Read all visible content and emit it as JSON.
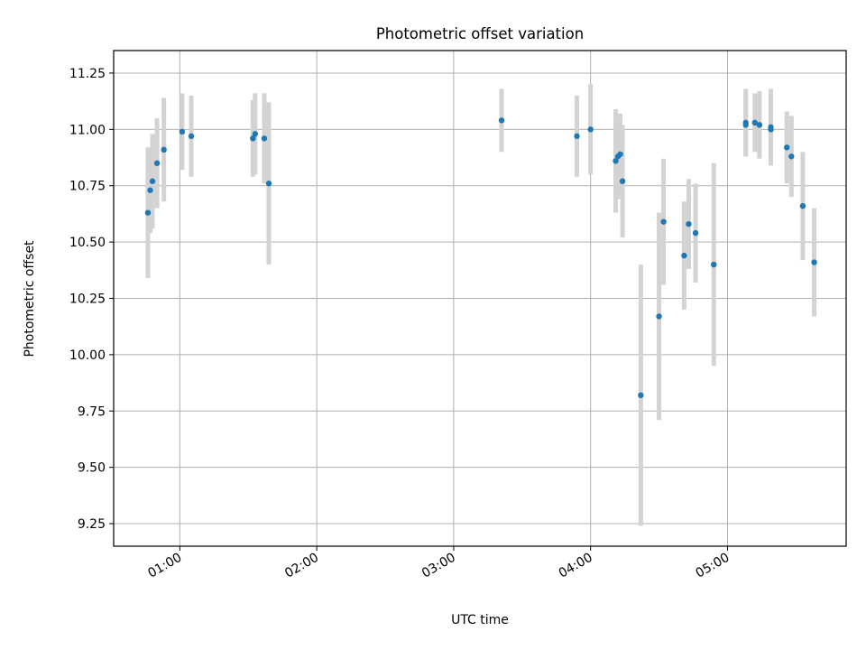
{
  "chart_data": {
    "type": "scatter",
    "title": "Photometric offset variation",
    "xlabel": "UTC time",
    "ylabel": "Photometric offset",
    "xlim": [
      "00:31",
      "05:52"
    ],
    "ylim": [
      9.15,
      11.35
    ],
    "x_ticks": [
      "01:00",
      "02:00",
      "03:00",
      "04:00",
      "05:00"
    ],
    "y_ticks": [
      "9.25",
      "9.50",
      "9.75",
      "10.00",
      "10.25",
      "10.50",
      "10.75",
      "11.00",
      "11.25"
    ],
    "grid": true,
    "marker_color": "#1f77b4",
    "errorbar_color": "#d3d3d3",
    "points": [
      {
        "t": "00:46",
        "y": 10.63,
        "err": 0.29
      },
      {
        "t": "00:47",
        "y": 10.73,
        "err": 0.19
      },
      {
        "t": "00:48",
        "y": 10.77,
        "err": 0.21
      },
      {
        "t": "00:50",
        "y": 10.85,
        "err": 0.2
      },
      {
        "t": "00:53",
        "y": 10.91,
        "err": 0.23
      },
      {
        "t": "01:01",
        "y": 10.99,
        "err": 0.17
      },
      {
        "t": "01:05",
        "y": 10.97,
        "err": 0.18
      },
      {
        "t": "01:32",
        "y": 10.96,
        "err": 0.17
      },
      {
        "t": "01:33",
        "y": 10.98,
        "err": 0.18
      },
      {
        "t": "01:37",
        "y": 10.96,
        "err": 0.2
      },
      {
        "t": "01:39",
        "y": 10.76,
        "err": 0.36
      },
      {
        "t": "03:21",
        "y": 11.04,
        "err": 0.14
      },
      {
        "t": "03:54",
        "y": 10.97,
        "err": 0.18
      },
      {
        "t": "04:00",
        "y": 11.0,
        "err": 0.2
      },
      {
        "t": "04:11",
        "y": 10.86,
        "err": 0.23
      },
      {
        "t": "04:12",
        "y": 10.88,
        "err": 0.19
      },
      {
        "t": "04:13",
        "y": 10.89,
        "err": 0.18
      },
      {
        "t": "04:14",
        "y": 10.77,
        "err": 0.25
      },
      {
        "t": "04:22",
        "y": 9.82,
        "err": 0.58
      },
      {
        "t": "04:30",
        "y": 10.17,
        "err": 0.46
      },
      {
        "t": "04:32",
        "y": 10.59,
        "err": 0.28
      },
      {
        "t": "04:41",
        "y": 10.44,
        "err": 0.24
      },
      {
        "t": "04:43",
        "y": 10.58,
        "err": 0.2
      },
      {
        "t": "04:46",
        "y": 10.54,
        "err": 0.22
      },
      {
        "t": "04:54",
        "y": 10.4,
        "err": 0.45
      },
      {
        "t": "05:08",
        "y": 11.03,
        "err": 0.15
      },
      {
        "t": "05:08",
        "y": 11.02,
        "err": 0.14
      },
      {
        "t": "05:12",
        "y": 11.03,
        "err": 0.13
      },
      {
        "t": "05:14",
        "y": 11.02,
        "err": 0.15
      },
      {
        "t": "05:19",
        "y": 11.01,
        "err": 0.17
      },
      {
        "t": "05:19",
        "y": 11.0,
        "err": 0.16
      },
      {
        "t": "05:26",
        "y": 10.92,
        "err": 0.16
      },
      {
        "t": "05:28",
        "y": 10.88,
        "err": 0.18
      },
      {
        "t": "05:33",
        "y": 10.66,
        "err": 0.24
      },
      {
        "t": "05:38",
        "y": 10.41,
        "err": 0.24
      }
    ]
  }
}
